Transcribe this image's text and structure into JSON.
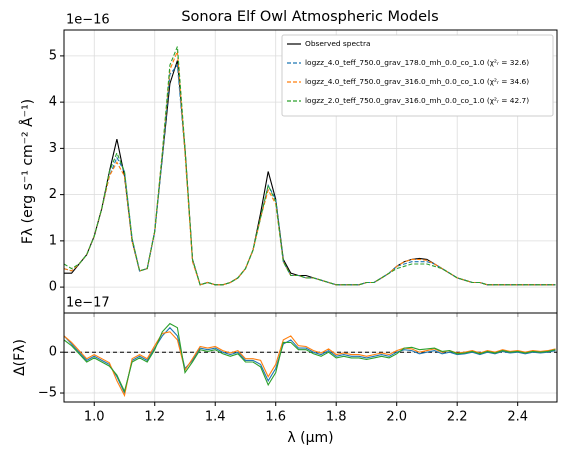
{
  "chart_data": [
    {
      "type": "line",
      "title": "Sonora Elf Owl Atmospheric Models",
      "y_label": "Fλ (erg s⁻¹ cm⁻² Å⁻¹)",
      "offset_text": "1e−16",
      "xlim": [
        0.9,
        2.53
      ],
      "xticks": [
        1,
        1.2,
        1.4,
        1.6,
        1.8,
        2,
        2.2,
        2.4
      ],
      "ylim": [
        -0.56,
        5.56
      ],
      "yticks": [
        0,
        1,
        2,
        3,
        4,
        5
      ],
      "grid": true,
      "legend": "upper right",
      "x": [
        0.9,
        0.925,
        0.95,
        0.975,
        1.0,
        1.025,
        1.05,
        1.075,
        1.1,
        1.125,
        1.15,
        1.175,
        1.2,
        1.225,
        1.25,
        1.275,
        1.3,
        1.325,
        1.35,
        1.375,
        1.4,
        1.425,
        1.45,
        1.475,
        1.5,
        1.525,
        1.55,
        1.575,
        1.6,
        1.625,
        1.65,
        1.675,
        1.7,
        1.725,
        1.75,
        1.775,
        1.8,
        1.825,
        1.85,
        1.875,
        1.9,
        1.925,
        1.95,
        1.975,
        2.0,
        2.025,
        2.05,
        2.075,
        2.1,
        2.125,
        2.15,
        2.175,
        2.2,
        2.225,
        2.25,
        2.275,
        2.3,
        2.325,
        2.35,
        2.375,
        2.4,
        2.425,
        2.45,
        2.475,
        2.5,
        2.525
      ],
      "series": [
        {
          "name": "Observed spectra",
          "color": "#000000",
          "dash": false,
          "values": [
            0.3,
            0.3,
            0.5,
            0.7,
            1.1,
            1.7,
            2.5,
            3.2,
            2.4,
            1.0,
            0.35,
            0.4,
            1.2,
            2.8,
            4.4,
            4.9,
            3.0,
            0.6,
            0.05,
            0.1,
            0.05,
            0.05,
            0.1,
            0.2,
            0.4,
            0.8,
            1.6,
            2.5,
            1.9,
            0.6,
            0.3,
            0.25,
            0.25,
            0.2,
            0.15,
            0.1,
            0.05,
            0.05,
            0.05,
            0.05,
            0.1,
            0.1,
            0.2,
            0.3,
            0.45,
            0.55,
            0.6,
            0.62,
            0.6,
            0.5,
            0.4,
            0.3,
            0.2,
            0.15,
            0.1,
            0.1,
            0.05,
            0.05,
            0.05,
            0.05,
            0.05,
            0.05,
            0.05,
            0.05,
            0.05,
            0.05
          ]
        },
        {
          "name": "logzz_4.0_teff_750.0_grav_178.0_mh_0.0_co_1.0 (χ²ᵣ = 32.6)",
          "color": "#1f77b4",
          "dash": true,
          "values": [
            0.4,
            0.35,
            0.5,
            0.7,
            1.1,
            1.7,
            2.4,
            2.8,
            2.5,
            1.05,
            0.35,
            0.4,
            1.2,
            2.8,
            4.6,
            4.8,
            2.9,
            0.6,
            0.05,
            0.1,
            0.05,
            0.05,
            0.1,
            0.2,
            0.4,
            0.8,
            1.5,
            2.2,
            1.9,
            0.55,
            0.25,
            0.25,
            0.2,
            0.2,
            0.15,
            0.1,
            0.05,
            0.05,
            0.05,
            0.05,
            0.1,
            0.1,
            0.2,
            0.3,
            0.45,
            0.5,
            0.55,
            0.55,
            0.55,
            0.5,
            0.4,
            0.3,
            0.2,
            0.15,
            0.1,
            0.1,
            0.05,
            0.05,
            0.05,
            0.05,
            0.05,
            0.05,
            0.05,
            0.05,
            0.05,
            0.05
          ]
        },
        {
          "name": "logzz_4.0_teff_750.0_grav_316.0_mh_0.0_co_1.0 (χ²ᵣ = 34.6)",
          "color": "#ff7f0e",
          "dash": true,
          "values": [
            0.4,
            0.35,
            0.5,
            0.7,
            1.1,
            1.7,
            2.4,
            2.7,
            2.4,
            1.0,
            0.35,
            0.4,
            1.2,
            2.9,
            4.7,
            5.1,
            2.9,
            0.55,
            0.05,
            0.1,
            0.05,
            0.05,
            0.1,
            0.2,
            0.4,
            0.8,
            1.5,
            2.1,
            1.8,
            0.55,
            0.25,
            0.25,
            0.2,
            0.2,
            0.15,
            0.1,
            0.05,
            0.05,
            0.05,
            0.05,
            0.1,
            0.1,
            0.2,
            0.3,
            0.45,
            0.55,
            0.6,
            0.6,
            0.58,
            0.5,
            0.4,
            0.3,
            0.2,
            0.15,
            0.1,
            0.1,
            0.05,
            0.05,
            0.05,
            0.05,
            0.05,
            0.05,
            0.05,
            0.05,
            0.05,
            0.05
          ]
        },
        {
          "name": "logzz_2.0_teff_750.0_grav_316.0_mh_0.0_co_1.0 (χ²ᵣ = 42.7)",
          "color": "#2ca02c",
          "dash": true,
          "values": [
            0.5,
            0.4,
            0.5,
            0.7,
            1.1,
            1.7,
            2.5,
            2.9,
            2.5,
            1.05,
            0.35,
            0.4,
            1.2,
            2.9,
            4.8,
            5.2,
            3.0,
            0.6,
            0.05,
            0.1,
            0.05,
            0.05,
            0.1,
            0.2,
            0.4,
            0.8,
            1.5,
            2.2,
            1.85,
            0.55,
            0.25,
            0.25,
            0.2,
            0.2,
            0.15,
            0.1,
            0.05,
            0.05,
            0.05,
            0.05,
            0.1,
            0.1,
            0.2,
            0.3,
            0.4,
            0.45,
            0.5,
            0.5,
            0.5,
            0.45,
            0.4,
            0.3,
            0.2,
            0.15,
            0.1,
            0.1,
            0.05,
            0.05,
            0.05,
            0.05,
            0.05,
            0.05,
            0.05,
            0.05,
            0.05,
            0.05
          ]
        }
      ]
    },
    {
      "type": "line",
      "y_label": "Δ(Fλ)",
      "offset_text": "1e−17",
      "x_label": "λ (μm)",
      "xlim": [
        0.9,
        2.53
      ],
      "xticks": [
        {
          "value": 1,
          "label": "1.0"
        },
        1.2,
        1.4,
        1.6,
        1.8,
        {
          "value": 2,
          "label": "2.0"
        },
        2.2,
        2.4
      ],
      "ylim": [
        -6.1,
        4.8
      ],
      "yticks": [
        {
          "value": -5,
          "label": "−5"
        },
        0
      ],
      "grid": true,
      "x": [
        0.9,
        0.925,
        0.95,
        0.975,
        1.0,
        1.025,
        1.05,
        1.075,
        1.1,
        1.125,
        1.15,
        1.175,
        1.2,
        1.225,
        1.25,
        1.275,
        1.3,
        1.325,
        1.35,
        1.375,
        1.4,
        1.425,
        1.45,
        1.475,
        1.5,
        1.525,
        1.55,
        1.575,
        1.6,
        1.625,
        1.65,
        1.675,
        1.7,
        1.725,
        1.75,
        1.775,
        1.8,
        1.825,
        1.85,
        1.875,
        1.9,
        1.925,
        1.95,
        1.975,
        2.0,
        2.025,
        2.05,
        2.075,
        2.1,
        2.125,
        2.15,
        2.175,
        2.2,
        2.225,
        2.25,
        2.275,
        2.3,
        2.325,
        2.35,
        2.375,
        2.4,
        2.425,
        2.45,
        2.475,
        2.5,
        2.525
      ],
      "series": [
        {
          "color": "#1f77b4",
          "values": [
            2,
            1,
            0,
            -1,
            -0.5,
            -1,
            -1.5,
            -3,
            -5,
            -1,
            -0.5,
            -1,
            0.5,
            2,
            3,
            2,
            -2,
            -1,
            0.5,
            0.3,
            0.5,
            0,
            -0.3,
            0,
            -1,
            -1,
            -1.5,
            -3.5,
            -2,
            1,
            1.5,
            0.5,
            0.5,
            0,
            -0.3,
            0.2,
            -0.5,
            -0.3,
            -0.5,
            -0.5,
            -0.7,
            -0.5,
            -0.3,
            -0.5,
            0,
            0.3,
            0.2,
            -0.2,
            0,
            0.2,
            -0.2,
            0,
            -0.3,
            -0.2,
            0,
            -0.3,
            0,
            -0.2,
            0.1,
            -0.1,
            0,
            -0.2,
            0,
            -0.1,
            0,
            0.2
          ]
        },
        {
          "color": "#ff7f0e",
          "values": [
            2,
            1.2,
            0.2,
            -0.8,
            -0.3,
            -0.8,
            -1.3,
            -3.5,
            -5.3,
            -0.8,
            -0.3,
            -0.8,
            0.8,
            2.3,
            2.5,
            1.5,
            -2.2,
            -0.8,
            0.7,
            0.5,
            0.7,
            0.2,
            -0.1,
            0.2,
            -0.8,
            -0.8,
            -1,
            -3,
            -1.5,
            1.5,
            2,
            0.8,
            0.7,
            0.2,
            -0.1,
            0.4,
            -0.3,
            -0.1,
            -0.3,
            -0.3,
            -0.5,
            -0.3,
            -0.1,
            -0.3,
            0.2,
            0.5,
            0.4,
            0,
            0.2,
            0.4,
            0,
            0.2,
            -0.1,
            0,
            0.2,
            -0.1,
            0.2,
            0,
            0.3,
            0.1,
            0.2,
            0,
            0.2,
            0.1,
            0.2,
            0.4
          ]
        },
        {
          "color": "#2ca02c",
          "values": [
            1.5,
            0.8,
            -0.2,
            -1.2,
            -0.7,
            -1.2,
            -1.7,
            -2.8,
            -4.8,
            -1.2,
            -0.7,
            -1.2,
            0.3,
            2.5,
            3.5,
            3,
            -2.5,
            -1.2,
            0.3,
            0.1,
            0.3,
            -0.2,
            -0.5,
            -0.2,
            -1.2,
            -1.2,
            -1.8,
            -4,
            -2.5,
            1.2,
            1.2,
            0.3,
            0.3,
            -0.2,
            -0.5,
            0,
            -0.7,
            -0.5,
            -0.7,
            -0.7,
            -0.9,
            -0.7,
            -0.5,
            -0.7,
            -0.2,
            0.5,
            0.6,
            0.3,
            0.4,
            0.5,
            0.1,
            0.2,
            -0.2,
            -0.1,
            0.1,
            -0.2,
            0.1,
            -0.1,
            0.2,
            0,
            0.1,
            -0.1,
            0.1,
            0,
            0.1,
            0.3
          ]
        }
      ]
    }
  ]
}
